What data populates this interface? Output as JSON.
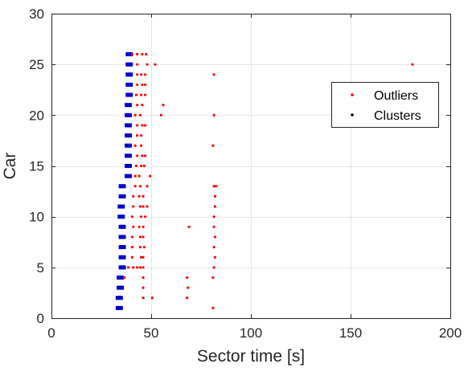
{
  "chart_data": {
    "type": "scatter",
    "title": "",
    "xlabel": "Sector time [s]",
    "ylabel": "Car",
    "xlim": [
      0,
      200
    ],
    "ylim": [
      0,
      30
    ],
    "xticks": [
      "0",
      "50",
      "100",
      "150",
      "200"
    ],
    "yticks": [
      "0",
      "5",
      "10",
      "15",
      "20",
      "25",
      "30"
    ],
    "grid": true,
    "legend_position": "upper-right",
    "legend": [
      "Outliers",
      "Clusters"
    ],
    "colors": {
      "outliers": "#ff0000",
      "clusters": "#0000cc",
      "clusters_legend": "#000000",
      "grid": "#e6e6e6",
      "axis": "#262626"
    },
    "series": [
      {
        "name": "Outliers",
        "points": [
          [
            40.5,
            26
          ],
          [
            43,
            26
          ],
          [
            45.5,
            26
          ],
          [
            47.5,
            26
          ],
          [
            43,
            25
          ],
          [
            48,
            25
          ],
          [
            52,
            25
          ],
          [
            181,
            25
          ],
          [
            43,
            24
          ],
          [
            45,
            24
          ],
          [
            47,
            24
          ],
          [
            81.5,
            24
          ],
          [
            43,
            23
          ],
          [
            45.5,
            23
          ],
          [
            47,
            23
          ],
          [
            42.5,
            22
          ],
          [
            45,
            22
          ],
          [
            47,
            22
          ],
          [
            43,
            21
          ],
          [
            45.5,
            21
          ],
          [
            56,
            21
          ],
          [
            42,
            20
          ],
          [
            44.5,
            20
          ],
          [
            55,
            20
          ],
          [
            81.5,
            20
          ],
          [
            43,
            19
          ],
          [
            45.5,
            19
          ],
          [
            47,
            19
          ],
          [
            43,
            18
          ],
          [
            45,
            18
          ],
          [
            42,
            17
          ],
          [
            45,
            17
          ],
          [
            81,
            17
          ],
          [
            43,
            16
          ],
          [
            45.5,
            16
          ],
          [
            47,
            16
          ],
          [
            42.5,
            15
          ],
          [
            45,
            15
          ],
          [
            46.5,
            15
          ],
          [
            42,
            14
          ],
          [
            44,
            14
          ],
          [
            49.5,
            14
          ],
          [
            42,
            13
          ],
          [
            44.5,
            13
          ],
          [
            48,
            13
          ],
          [
            81.5,
            13
          ],
          [
            82.5,
            13
          ],
          [
            41,
            12
          ],
          [
            44,
            12
          ],
          [
            46,
            12
          ],
          [
            82,
            12
          ],
          [
            41,
            11
          ],
          [
            44.5,
            11
          ],
          [
            46,
            11
          ],
          [
            48,
            11
          ],
          [
            82,
            11
          ],
          [
            40.5,
            10
          ],
          [
            45,
            10
          ],
          [
            47,
            10
          ],
          [
            81.5,
            10
          ],
          [
            41,
            9
          ],
          [
            44,
            9
          ],
          [
            46,
            9
          ],
          [
            69,
            9
          ],
          [
            81.5,
            9
          ],
          [
            40.5,
            8
          ],
          [
            44.5,
            8
          ],
          [
            46,
            8
          ],
          [
            82,
            8
          ],
          [
            40.5,
            7
          ],
          [
            44.5,
            7
          ],
          [
            46.5,
            7
          ],
          [
            81.5,
            7
          ],
          [
            40.5,
            6
          ],
          [
            45,
            6
          ],
          [
            46,
            6
          ],
          [
            82,
            6
          ],
          [
            38.5,
            5
          ],
          [
            41,
            5
          ],
          [
            43,
            5
          ],
          [
            44.5,
            5
          ],
          [
            46,
            5
          ],
          [
            81.5,
            5
          ],
          [
            36.5,
            4
          ],
          [
            46,
            4
          ],
          [
            68,
            4
          ],
          [
            81,
            4
          ],
          [
            46,
            3
          ],
          [
            68.5,
            3
          ],
          [
            46,
            2
          ],
          [
            50.5,
            2
          ],
          [
            68,
            2
          ],
          [
            81,
            1
          ]
        ]
      },
      {
        "name": "Clusters",
        "points": [
          [
            39,
            26
          ],
          [
            40,
            26
          ],
          [
            38,
            26
          ],
          [
            38,
            25
          ],
          [
            40,
            25
          ],
          [
            39,
            25
          ],
          [
            38,
            24
          ],
          [
            40,
            24
          ],
          [
            39,
            24
          ],
          [
            38,
            23
          ],
          [
            40,
            23
          ],
          [
            39,
            23
          ],
          [
            38,
            22
          ],
          [
            40,
            22
          ],
          [
            39,
            22
          ],
          [
            37.5,
            21
          ],
          [
            39.5,
            21
          ],
          [
            38.5,
            21
          ],
          [
            37.5,
            20
          ],
          [
            39.5,
            20
          ],
          [
            38.5,
            20
          ],
          [
            37.5,
            19
          ],
          [
            39.5,
            19
          ],
          [
            38.5,
            19
          ],
          [
            37.5,
            18
          ],
          [
            39.5,
            18
          ],
          [
            38.5,
            18
          ],
          [
            37.5,
            17
          ],
          [
            39.5,
            17
          ],
          [
            38.5,
            17
          ],
          [
            37.5,
            16
          ],
          [
            39.5,
            16
          ],
          [
            38.5,
            16
          ],
          [
            37.5,
            15
          ],
          [
            39.5,
            15
          ],
          [
            38.5,
            15
          ],
          [
            37.5,
            14
          ],
          [
            39.5,
            14
          ],
          [
            38.5,
            14
          ],
          [
            34.5,
            13
          ],
          [
            36.5,
            13
          ],
          [
            35.5,
            13
          ],
          [
            34.5,
            12
          ],
          [
            36.5,
            12
          ],
          [
            35.5,
            12
          ],
          [
            34,
            11
          ],
          [
            36,
            11
          ],
          [
            35,
            11
          ],
          [
            34,
            10
          ],
          [
            36,
            10
          ],
          [
            35,
            10
          ],
          [
            34.5,
            9
          ],
          [
            36.5,
            9
          ],
          [
            35.5,
            9
          ],
          [
            34.5,
            8
          ],
          [
            36.5,
            8
          ],
          [
            35.5,
            8
          ],
          [
            34.5,
            7
          ],
          [
            36.5,
            7
          ],
          [
            35.5,
            7
          ],
          [
            34.5,
            6
          ],
          [
            36.5,
            6
          ],
          [
            35.5,
            6
          ],
          [
            34.5,
            5
          ],
          [
            36.5,
            5
          ],
          [
            35.5,
            5
          ],
          [
            33.5,
            4
          ],
          [
            35.5,
            4
          ],
          [
            34.5,
            4
          ],
          [
            33.5,
            3
          ],
          [
            35.5,
            3
          ],
          [
            34.5,
            3
          ],
          [
            33,
            2
          ],
          [
            35,
            2
          ],
          [
            34,
            2
          ],
          [
            33,
            1
          ],
          [
            35,
            1
          ],
          [
            34,
            1
          ]
        ]
      }
    ]
  }
}
